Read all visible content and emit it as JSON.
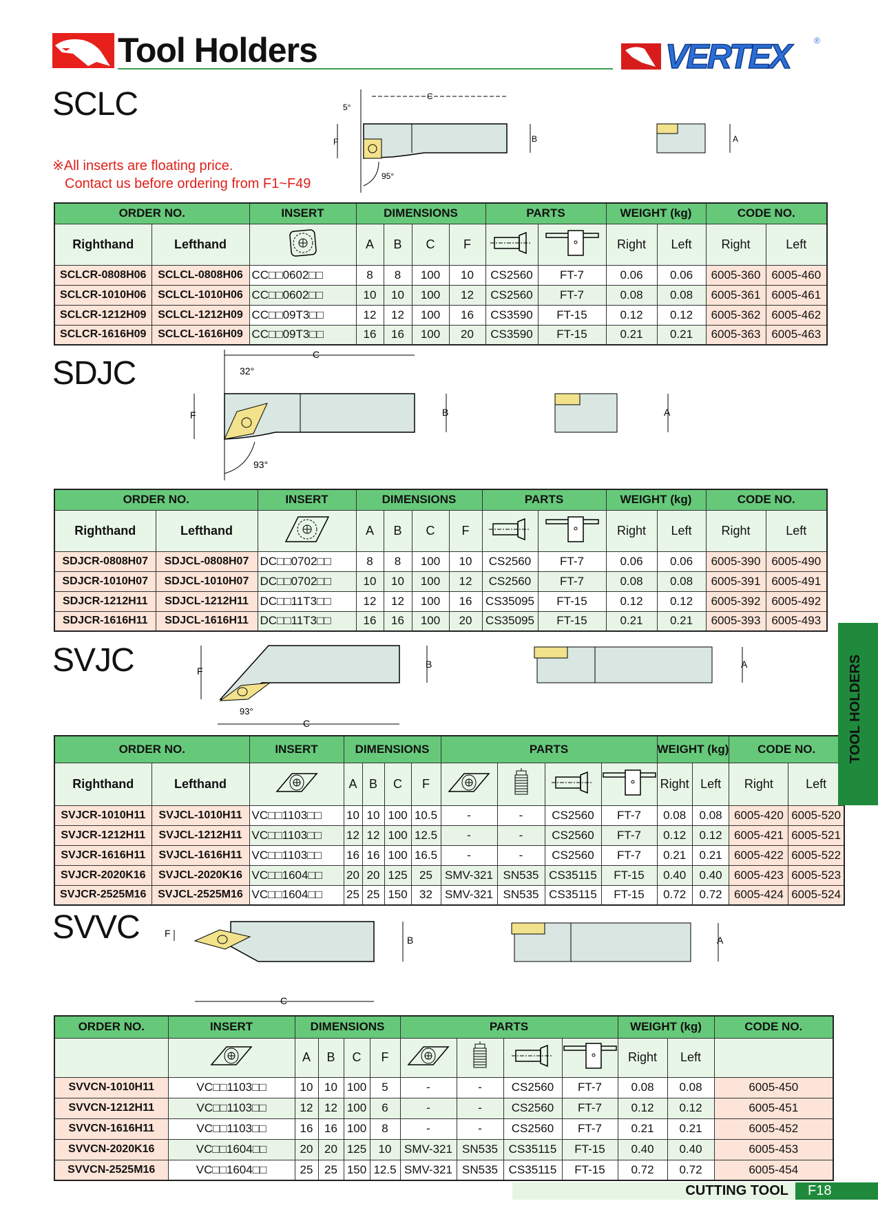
{
  "header": {
    "title": "Tool Holders",
    "brand": "VERTEX",
    "brand_mark": "®"
  },
  "note": {
    "line1": "※All inserts are floating price.",
    "line2": "Contact us before ordering from F1~F49"
  },
  "colors": {
    "header_green": "#66c97a",
    "sub_green": "#e8f6e8",
    "pink": "#fde4d8",
    "dark_green": "#1f8a3c",
    "note_red": "#e0201a"
  },
  "sections": [
    {
      "name": "SCLC",
      "diagram": {
        "c": "C",
        "b": "B",
        "f": "F",
        "a": "A",
        "angle1": "5°",
        "angle2": "95°"
      },
      "table": {
        "groups": [
          {
            "label": "ORDER NO.",
            "span": 2
          },
          {
            "label": "INSERT",
            "span": 1
          },
          {
            "label": "DIMENSIONS",
            "span": 4
          },
          {
            "label": "PARTS",
            "span": 2
          },
          {
            "label": "WEIGHT (kg)",
            "span": 2
          },
          {
            "label": "CODE NO.",
            "span": 2
          }
        ],
        "sub": [
          {
            "text": "Righthand",
            "bold": true
          },
          {
            "text": "Lefthand",
            "bold": true
          },
          {
            "icon": "insert-square-icon"
          },
          {
            "text": "A"
          },
          {
            "text": "B"
          },
          {
            "text": "C"
          },
          {
            "text": "F"
          },
          {
            "icon": "screw-icon"
          },
          {
            "icon": "wrench-icon"
          },
          {
            "text": "Right"
          },
          {
            "text": "Left"
          },
          {
            "text": "Right"
          },
          {
            "text": "Left"
          }
        ],
        "kinds": [
          "ord",
          "ord",
          "ins",
          "d",
          "d",
          "d",
          "d",
          "d",
          "d",
          "d",
          "d",
          "code",
          "code"
        ],
        "rows": [
          [
            "SCLCR-0808H06",
            "SCLCL-0808H06",
            "CC□□0602□□",
            "8",
            "8",
            "100",
            "10",
            "CS2560",
            "FT-7",
            "0.06",
            "0.06",
            "6005-360",
            "6005-460"
          ],
          [
            "SCLCR-1010H06",
            "SCLCL-1010H06",
            "CC□□0602□□",
            "10",
            "10",
            "100",
            "12",
            "CS2560",
            "FT-7",
            "0.08",
            "0.08",
            "6005-361",
            "6005-461"
          ],
          [
            "SCLCR-1212H09",
            "SCLCL-1212H09",
            "CC□□09T3□□",
            "12",
            "12",
            "100",
            "16",
            "CS3590",
            "FT-15",
            "0.12",
            "0.12",
            "6005-362",
            "6005-462"
          ],
          [
            "SCLCR-1616H09",
            "SCLCL-1616H09",
            "CC□□09T3□□",
            "16",
            "16",
            "100",
            "20",
            "CS3590",
            "FT-15",
            "0.21",
            "0.21",
            "6005-363",
            "6005-463"
          ]
        ]
      }
    },
    {
      "name": "SDJC",
      "diagram": {
        "c": "C",
        "b": "B",
        "f": "F",
        "a": "A",
        "angle1": "32°",
        "angle2": "93°"
      },
      "table": {
        "groups": [
          {
            "label": "ORDER NO.",
            "span": 2
          },
          {
            "label": "INSERT",
            "span": 1
          },
          {
            "label": "DIMENSIONS",
            "span": 4
          },
          {
            "label": "PARTS",
            "span": 2
          },
          {
            "label": "WEIGHT (kg)",
            "span": 2
          },
          {
            "label": "CODE NO.",
            "span": 2
          }
        ],
        "sub": [
          {
            "text": "Righthand",
            "bold": true
          },
          {
            "text": "Lefthand",
            "bold": true
          },
          {
            "icon": "insert-rhombus-55-icon"
          },
          {
            "text": "A"
          },
          {
            "text": "B"
          },
          {
            "text": "C"
          },
          {
            "text": "F"
          },
          {
            "icon": "screw-icon"
          },
          {
            "icon": "wrench-icon"
          },
          {
            "text": "Right"
          },
          {
            "text": "Left"
          },
          {
            "text": "Right"
          },
          {
            "text": "Left"
          }
        ],
        "kinds": [
          "ord",
          "ord",
          "ins",
          "d",
          "d",
          "d",
          "d",
          "d",
          "d",
          "d",
          "d",
          "code",
          "code"
        ],
        "rows": [
          [
            "SDJCR-0808H07",
            "SDJCL-0808H07",
            "DC□□0702□□",
            "8",
            "8",
            "100",
            "10",
            "CS2560",
            "FT-7",
            "0.06",
            "0.06",
            "6005-390",
            "6005-490"
          ],
          [
            "SDJCR-1010H07",
            "SDJCL-1010H07",
            "DC□□0702□□",
            "10",
            "10",
            "100",
            "12",
            "CS2560",
            "FT-7",
            "0.08",
            "0.08",
            "6005-391",
            "6005-491"
          ],
          [
            "SDJCR-1212H11",
            "SDJCL-1212H11",
            "DC□□11T3□□",
            "12",
            "12",
            "100",
            "16",
            "CS35095",
            "FT-15",
            "0.12",
            "0.12",
            "6005-392",
            "6005-492"
          ],
          [
            "SDJCR-1616H11",
            "SDJCL-1616H11",
            "DC□□11T3□□",
            "16",
            "16",
            "100",
            "20",
            "CS35095",
            "FT-15",
            "0.21",
            "0.21",
            "6005-393",
            "6005-493"
          ]
        ]
      }
    },
    {
      "name": "SVJC",
      "diagram": {
        "c": "C",
        "b": "B",
        "f": "F",
        "a": "A",
        "angle1": "",
        "angle2": "93°"
      },
      "table": {
        "groups": [
          {
            "label": "ORDER NO.",
            "span": 2
          },
          {
            "label": "INSERT",
            "span": 1
          },
          {
            "label": "DIMENSIONS",
            "span": 4
          },
          {
            "label": "PARTS",
            "span": 4
          },
          {
            "label": "WEIGHT (kg)",
            "span": 2
          },
          {
            "label": "CODE NO.",
            "span": 2
          }
        ],
        "sub": [
          {
            "text": "Righthand",
            "bold": true
          },
          {
            "text": "Lefthand",
            "bold": true
          },
          {
            "icon": "insert-rhombus-35-icon"
          },
          {
            "text": "A"
          },
          {
            "text": "B"
          },
          {
            "text": "C"
          },
          {
            "text": "F"
          },
          {
            "icon": "shim-icon"
          },
          {
            "icon": "shim-screw-icon"
          },
          {
            "icon": "screw-icon"
          },
          {
            "icon": "wrench-icon"
          },
          {
            "text": "Right"
          },
          {
            "text": "Left"
          },
          {
            "text": "Right"
          },
          {
            "text": "Left"
          }
        ],
        "kinds": [
          "ord",
          "ord",
          "ins",
          "d",
          "d",
          "d",
          "d",
          "d",
          "d",
          "d",
          "d",
          "d",
          "d",
          "code",
          "code"
        ],
        "rows": [
          [
            "SVJCR-1010H11",
            "SVJCL-1010H11",
            "VC□□1103□□",
            "10",
            "10",
            "100",
            "10.5",
            "-",
            "-",
            "CS2560",
            "FT-7",
            "0.08",
            "0.08",
            "6005-420",
            "6005-520"
          ],
          [
            "SVJCR-1212H11",
            "SVJCL-1212H11",
            "VC□□1103□□",
            "12",
            "12",
            "100",
            "12.5",
            "-",
            "-",
            "CS2560",
            "FT-7",
            "0.12",
            "0.12",
            "6005-421",
            "6005-521"
          ],
          [
            "SVJCR-1616H11",
            "SVJCL-1616H11",
            "VC□□1103□□",
            "16",
            "16",
            "100",
            "16.5",
            "-",
            "-",
            "CS2560",
            "FT-7",
            "0.21",
            "0.21",
            "6005-422",
            "6005-522"
          ],
          [
            "SVJCR-2020K16",
            "SVJCL-2020K16",
            "VC□□1604□□",
            "20",
            "20",
            "125",
            "25",
            "SMV-321",
            "SN535",
            "CS35115",
            "FT-15",
            "0.40",
            "0.40",
            "6005-423",
            "6005-523"
          ],
          [
            "SVJCR-2525M16",
            "SVJCL-2525M16",
            "VC□□1604□□",
            "25",
            "25",
            "150",
            "32",
            "SMV-321",
            "SN535",
            "CS35115",
            "FT-15",
            "0.72",
            "0.72",
            "6005-424",
            "6005-524"
          ]
        ]
      }
    },
    {
      "name": "SVVC",
      "diagram": {
        "c": "C",
        "b": "B",
        "f": "F",
        "a": "A",
        "angle1": "",
        "angle2": ""
      },
      "table": {
        "groups": [
          {
            "label": "ORDER NO.",
            "span": 1
          },
          {
            "label": "INSERT",
            "span": 1
          },
          {
            "label": "DIMENSIONS",
            "span": 4
          },
          {
            "label": "PARTS",
            "span": 4
          },
          {
            "label": "WEIGHT (kg)",
            "span": 2
          },
          {
            "label": "CODE NO.",
            "span": 1
          }
        ],
        "sub": [
          {
            "text": ""
          },
          {
            "icon": "insert-rhombus-35-icon"
          },
          {
            "text": "A"
          },
          {
            "text": "B"
          },
          {
            "text": "C"
          },
          {
            "text": "F"
          },
          {
            "icon": "shim-icon"
          },
          {
            "icon": "shim-screw-icon"
          },
          {
            "icon": "screw-icon"
          },
          {
            "icon": "wrench-icon"
          },
          {
            "text": "Right"
          },
          {
            "text": "Left"
          },
          {
            "text": ""
          }
        ],
        "kinds": [
          "ord",
          "insc",
          "d",
          "d",
          "d",
          "d",
          "d",
          "d",
          "d",
          "d",
          "d",
          "d",
          "code"
        ],
        "rows": [
          [
            "SVVCN-1010H11",
            "VC□□1103□□",
            "10",
            "10",
            "100",
            "5",
            "-",
            "-",
            "CS2560",
            "FT-7",
            "0.08",
            "0.08",
            "6005-450"
          ],
          [
            "SVVCN-1212H11",
            "VC□□1103□□",
            "12",
            "12",
            "100",
            "6",
            "-",
            "-",
            "CS2560",
            "FT-7",
            "0.12",
            "0.12",
            "6005-451"
          ],
          [
            "SVVCN-1616H11",
            "VC□□1103□□",
            "16",
            "16",
            "100",
            "8",
            "-",
            "-",
            "CS2560",
            "FT-7",
            "0.21",
            "0.21",
            "6005-452"
          ],
          [
            "SVVCN-2020K16",
            "VC□□1604□□",
            "20",
            "20",
            "125",
            "10",
            "SMV-321",
            "SN535",
            "CS35115",
            "FT-15",
            "0.40",
            "0.40",
            "6005-453"
          ],
          [
            "SVVCN-2525M16",
            "VC□□1604□□",
            "25",
            "25",
            "150",
            "12.5",
            "SMV-321",
            "SN535",
            "CS35115",
            "FT-15",
            "0.72",
            "0.72",
            "6005-454"
          ]
        ]
      }
    }
  ],
  "side_tab": {
    "label": "TOOL HOLDERS"
  },
  "footer": {
    "label": "CUTTING TOOL",
    "page": "F18"
  }
}
